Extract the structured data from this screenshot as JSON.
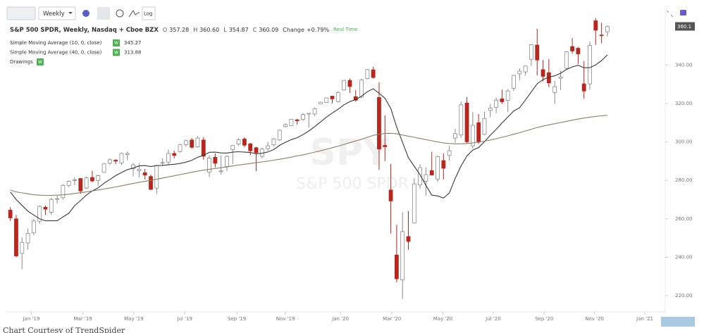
{
  "toolbar": {
    "interval": "Weekly",
    "log": "Log"
  },
  "chart_data": {
    "type": "candlestick",
    "title": "S&P 500 SPDR, Weekly, Nasdaq + Cboe BZX",
    "ohlc_labels": [
      "O",
      "H",
      "L",
      "C"
    ],
    "last_labels": [
      "357.28",
      "360.60",
      "354.87",
      "360.09"
    ],
    "change_label": "Change",
    "change": "+0.79%",
    "feed": "Real Time",
    "watermark": "SPY",
    "watermark_sub": "S&P 500 SPDR",
    "badge": "W",
    "drawings": "Drawings",
    "price_label": "360.1",
    "up_color": "#ffffff",
    "down_color": "#b8261e",
    "open": [
      264.5,
      260.0,
      242.0,
      247.5,
      252.7,
      258.8,
      266.0,
      263.4,
      270.2,
      271.0,
      277.4,
      280.0,
      281.0,
      276.0,
      281.5,
      280.0,
      284.2,
      288.9,
      290.5,
      289.0,
      293.5,
      286.0,
      285.0,
      284.0,
      282.0,
      276.0,
      289.3,
      289.5,
      294.0,
      295.0,
      298.5,
      301.0,
      297.5,
      301.0,
      284.4,
      292.0,
      284.6,
      287.3,
      296.0,
      298.9,
      301.5,
      299.0,
      297.0,
      292.5,
      296.5,
      298.5,
      301.0,
      308.0,
      308.5,
      311.5,
      311.7,
      314.5,
      314.5,
      319.7,
      320.5,
      323.8,
      321.0,
      327.0,
      332.0,
      323.5,
      323.3,
      333.0,
      337.5,
      323.1,
      298.2,
      275.0,
      241.2,
      228.2,
      250.8,
      257.8,
      277.6,
      279.5,
      285.1,
      280.7,
      290.3,
      293.0,
      302.0,
      303.6,
      320.2,
      298.0,
      310.0,
      303.9,
      316.4,
      318.0,
      322.4,
      321.6,
      327.9,
      335.4,
      336.4,
      343.0,
      350.4,
      337.6,
      336.0,
      325.7,
      333.1,
      338.3,
      349.6,
      348.7,
      330.2,
      330.2,
      363.0,
      355.6,
      357.28
    ],
    "high": [
      266.0,
      262.0,
      250.5,
      255.0,
      260.0,
      267.0,
      267.0,
      271.0,
      272.0,
      278.0,
      280.0,
      281.5,
      281.0,
      282.0,
      285.0,
      283.0,
      289.0,
      291.5,
      291.0,
      294.5,
      295.0,
      289.0,
      289.0,
      286.0,
      283.0,
      288.0,
      291.5,
      296.0,
      295.5,
      299.0,
      301.0,
      302.0,
      303.0,
      302.5,
      293.0,
      294.0,
      293.0,
      293.0,
      298.5,
      302.0,
      302.5,
      299.5,
      297.5,
      297.0,
      300.0,
      302.0,
      306.5,
      309.7,
      312.0,
      312.0,
      315.0,
      315.0,
      318.0,
      321.0,
      323.0,
      324.0,
      326.5,
      332.2,
      333.0,
      327.0,
      333.0,
      338.0,
      339.1,
      331.0,
      313.8,
      288.5,
      256.9,
      263.3,
      264.1,
      281.2,
      288.3,
      286.8,
      294.9,
      293.0,
      294.0,
      297.9,
      306.8,
      321.0,
      323.4,
      315.6,
      314.5,
      315.7,
      319.8,
      323.0,
      327.2,
      327.6,
      334.9,
      338.3,
      339.7,
      351.0,
      358.8,
      342.6,
      343.1,
      331.8,
      337.0,
      347.3,
      354.0,
      349.3,
      342.0,
      352.2,
      364.4,
      362.0,
      360.6
    ],
    "low": [
      259.0,
      240.0,
      233.8,
      244.0,
      251.5,
      257.5,
      262.0,
      262.0,
      268.0,
      270.0,
      276.5,
      277.5,
      273.0,
      275.5,
      279.0,
      277.0,
      284.0,
      288.0,
      288.5,
      288.0,
      290.5,
      282.0,
      281.5,
      280.5,
      275.0,
      273.0,
      287.5,
      288.0,
      291.5,
      294.5,
      297.5,
      296.5,
      297.0,
      290.8,
      281.7,
      286.8,
      283.0,
      284.8,
      288.5,
      298.0,
      297.3,
      293.0,
      284.8,
      291.5,
      295.5,
      297.5,
      300.5,
      307.5,
      308.2,
      309.0,
      311.0,
      307.5,
      313.5,
      319.6,
      320.5,
      320.0,
      320.5,
      326.8,
      325.5,
      320.9,
      322.7,
      332.5,
      333.0,
      285.5,
      290.0,
      252.4,
      227.0,
      218.3,
      243.9,
      257.5,
      275.5,
      272.0,
      282.7,
      279.1,
      280.5,
      290.2,
      299.5,
      302.1,
      299.0,
      296.7,
      298.9,
      303.5,
      312.9,
      315.0,
      319.8,
      315.5,
      326.5,
      332.2,
      334.5,
      339.6,
      334.6,
      331.5,
      328.5,
      319.8,
      327.0,
      337.5,
      345.9,
      340.6,
      322.6,
      327.2,
      350.5,
      351.3,
      354.87
    ],
    "close": [
      260.5,
      240.7,
      247.8,
      252.4,
      258.9,
      266.5,
      265.0,
      270.1,
      270.5,
      277.4,
      279.5,
      280.3,
      274.5,
      281.3,
      279.7,
      282.5,
      288.6,
      290.7,
      290.0,
      294.0,
      294.0,
      288.1,
      285.8,
      282.8,
      275.3,
      287.7,
      289.3,
      294.0,
      293.0,
      298.5,
      300.7,
      297.2,
      302.0,
      292.6,
      291.6,
      288.9,
      284.9,
      292.5,
      298.1,
      301.1,
      298.3,
      295.4,
      294.4,
      296.3,
      298.0,
      301.6,
      306.1,
      309.0,
      311.8,
      311.0,
      314.3,
      314.9,
      317.3,
      320.7,
      322.9,
      322.4,
      325.7,
      332.0,
      328.8,
      321.7,
      332.2,
      337.6,
      333.5,
      296.3,
      297.5,
      269.3,
      228.8,
      253.4,
      248.2,
      278.2,
      286.6,
      283.0,
      282.8,
      292.4,
      286.3,
      295.4,
      304.3,
      319.3,
      300.1,
      308.6,
      300.1,
      312.2,
      317.6,
      321.7,
      320.9,
      326.5,
      334.6,
      336.8,
      339.5,
      350.6,
      342.6,
      334.1,
      330.7,
      328.7,
      333.8,
      346.9,
      347.3,
      345.8,
      326.5,
      350.2,
      358.1,
      355.3,
      360.09
    ],
    "series": [
      {
        "name": "Simple Moving Average (10, 0, close)",
        "color": "#3a3a3a",
        "values": [
          274,
          270,
          267,
          264,
          262,
          260,
          259,
          259,
          259,
          261,
          262.9,
          266.9,
          269.5,
          272.4,
          274.5,
          276.1,
          278.5,
          280.5,
          282.5,
          284.1,
          285.6,
          286.4,
          287.5,
          287.7,
          287.2,
          287.7,
          287.8,
          288.1,
          288.4,
          288.8,
          289.5,
          290.4,
          292.0,
          293.0,
          294.6,
          294.7,
          294.3,
          294.2,
          294.7,
          294.9,
          294.7,
          294.5,
          293.8,
          294.1,
          294.8,
          296.0,
          298.2,
          299.8,
          301.2,
          302.2,
          303.8,
          305.7,
          308.0,
          310.4,
          312.9,
          315.0,
          317.0,
          319.3,
          321.0,
          322.0,
          323.8,
          326.1,
          327.7,
          325.3,
          322.7,
          317.4,
          307.7,
          299.8,
          291.8,
          287.4,
          282.9,
          277.4,
          272.3,
          271.9,
          270.8,
          273.4,
          281.0,
          287.6,
          292.7,
          295.8,
          297.1,
          300.1,
          303.5,
          306.5,
          309.9,
          313.0,
          316.1,
          317.8,
          321.8,
          326.0,
          330.2,
          332.4,
          333.7,
          334.4,
          335.7,
          337.7,
          339.0,
          339.9,
          338.6,
          338.6,
          340.1,
          342.3,
          345.27
        ]
      },
      {
        "name": "Simple Moving Average (40, 0, close)",
        "color": "#8b7f68",
        "values": [
          275,
          274,
          273.5,
          273,
          272.5,
          272.3,
          272.2,
          272.2,
          272.3,
          272.5,
          272.8,
          273.2,
          273.6,
          274,
          274.5,
          275,
          275.5,
          276,
          276.6,
          277.2,
          277.8,
          278.4,
          279,
          279.5,
          280,
          280.6,
          281.2,
          281.8,
          282.4,
          283,
          283.6,
          284.2,
          284.8,
          285.3,
          285.8,
          286.2,
          286.6,
          287,
          287.5,
          288,
          288.4,
          288.8,
          289.2,
          289.6,
          290,
          290.5,
          291,
          291.5,
          292.1,
          292.7,
          293.3,
          294,
          294.7,
          295.4,
          296.2,
          297,
          297.8,
          298.7,
          299.6,
          300.5,
          301.4,
          302.4,
          303.4,
          304,
          304.4,
          304.5,
          304.2,
          303.6,
          303,
          302.4,
          301.8,
          301.2,
          300.6,
          300,
          299.5,
          299.2,
          299,
          299,
          299.2,
          299.5,
          299.9,
          300.4,
          301,
          301.7,
          302.4,
          303.2,
          304,
          304.8,
          305.7,
          306.6,
          307.5,
          308.2,
          308.9,
          309.5,
          310.1,
          310.7,
          311.3,
          311.9,
          312.4,
          312.9,
          313.3,
          313.6,
          313.88
        ]
      }
    ],
    "xlim": [
      -0.8,
      111.4
    ],
    "xticks": [
      {
        "value": 3.6,
        "label": "Jan '19"
      },
      {
        "value": 12.4,
        "label": "Mar '19"
      },
      {
        "value": 21.1,
        "label": "May '19"
      },
      {
        "value": 29.8,
        "label": "Jul '19"
      },
      {
        "value": 38.7,
        "label": "Sep '19"
      },
      {
        "value": 47.0,
        "label": "Nov '19"
      },
      {
        "value": 56.4,
        "label": "Jan '20"
      },
      {
        "value": 65.2,
        "label": "Mar '20"
      },
      {
        "value": 73.9,
        "label": "May '20"
      },
      {
        "value": 82.5,
        "label": "Jul '20"
      },
      {
        "value": 91.2,
        "label": "Sep '20"
      },
      {
        "value": 99.8,
        "label": "Nov '20"
      },
      {
        "value": 108.4,
        "label": "Jan '21"
      }
    ],
    "ylim": [
      212.7,
      366.5
    ],
    "yticks": [
      {
        "value": 220,
        "label": "220.00"
      },
      {
        "value": 240,
        "label": "240.00"
      },
      {
        "value": 260,
        "label": "260.00"
      },
      {
        "value": 280,
        "label": "280.00"
      },
      {
        "value": 300,
        "label": "300.00"
      },
      {
        "value": 320,
        "label": "320.00"
      },
      {
        "value": 340,
        "label": "340.00"
      }
    ]
  },
  "caption": "Chart Courtesy of TrendSpider"
}
